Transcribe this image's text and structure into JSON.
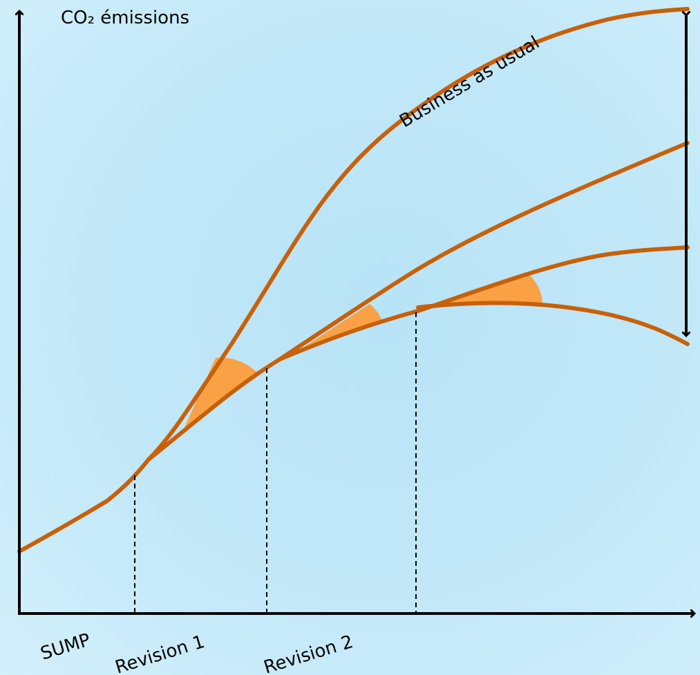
{
  "y_axis_label": "CO₂ émissions",
  "curve_label": "Business as usual",
  "x_labels": {
    "sump": "SUMP",
    "revision1": "Revision 1",
    "revision2": "Revision 2"
  },
  "colors": {
    "curve": "#c8600a",
    "wedge": "#f9a144",
    "axis": "#000000",
    "background": "#bfe7f8"
  }
}
